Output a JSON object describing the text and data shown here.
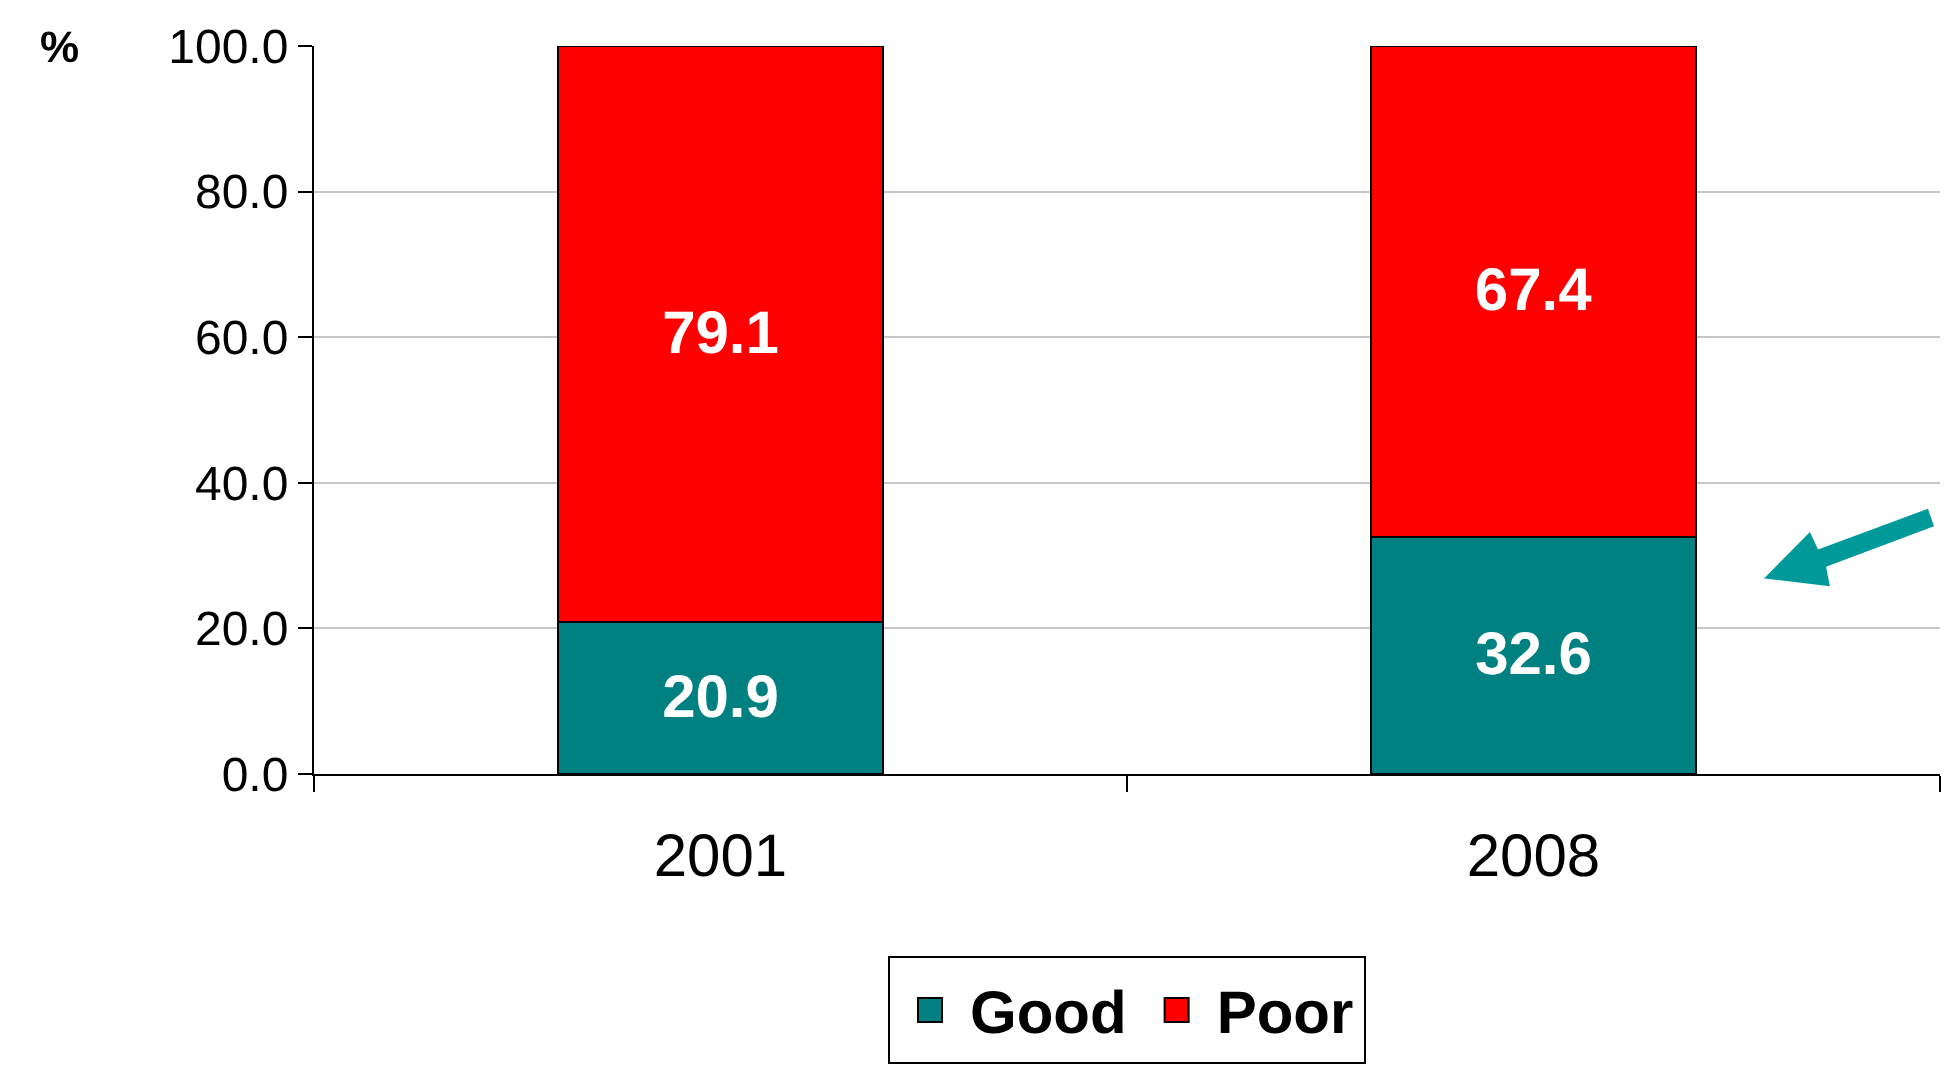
{
  "chart_data": {
    "type": "bar",
    "stacked": true,
    "ylabel": "%",
    "categories": [
      "2001",
      "2008"
    ],
    "series": [
      {
        "name": "Good",
        "color": "#008080",
        "values": [
          20.9,
          32.6
        ]
      },
      {
        "name": "Poor",
        "color": "#ff0000",
        "values": [
          79.1,
          67.4
        ]
      }
    ],
    "ylim": [
      0,
      100
    ],
    "yticks": [
      {
        "value": 0,
        "label": "0.0"
      },
      {
        "value": 20,
        "label": "20.0"
      },
      {
        "value": 40,
        "label": "40.0"
      },
      {
        "value": 60,
        "label": "60.0"
      },
      {
        "value": 80,
        "label": "80.0"
      },
      {
        "value": 100,
        "label": "100.0"
      }
    ],
    "grid": "y",
    "legend": "bottom",
    "data_labels": true
  }
}
